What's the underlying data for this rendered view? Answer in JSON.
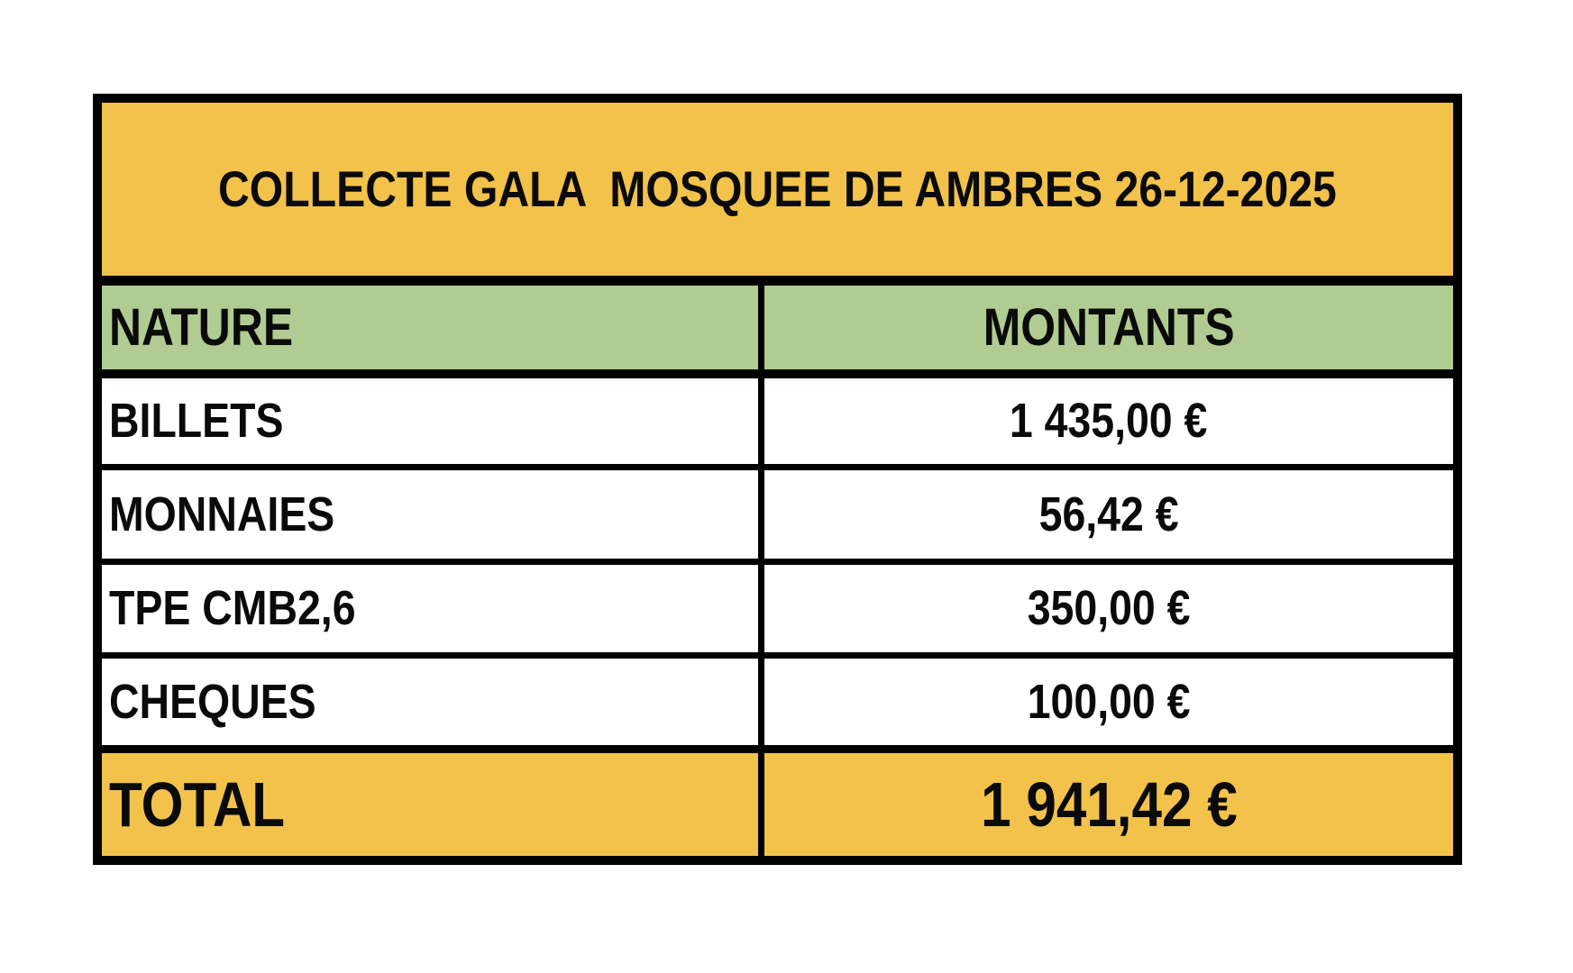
{
  "title": "COLLECTE GALA  MOSQUEE DE AMBRES 26-12-2025",
  "table": {
    "columns": {
      "nature": "NATURE",
      "montants": "MONTANTS"
    },
    "rows": [
      {
        "nature": "BILLETS",
        "montant": "1 435,00 €"
      },
      {
        "nature": "MONNAIES",
        "montant": "56,42 €"
      },
      {
        "nature": "TPE CMB2,6",
        "montant": "350,00 €"
      },
      {
        "nature": "CHEQUES",
        "montant": "100,00 €"
      }
    ],
    "total": {
      "label": "TOTAL",
      "montant": "1 941,42 €"
    }
  },
  "colors": {
    "title_bg": "#F2C24A",
    "header_bg": "#B0CC92",
    "total_bg": "#F2C24A",
    "row_bg": "#FFFFFF",
    "border": "#000000",
    "text": "#0A0A0A"
  }
}
